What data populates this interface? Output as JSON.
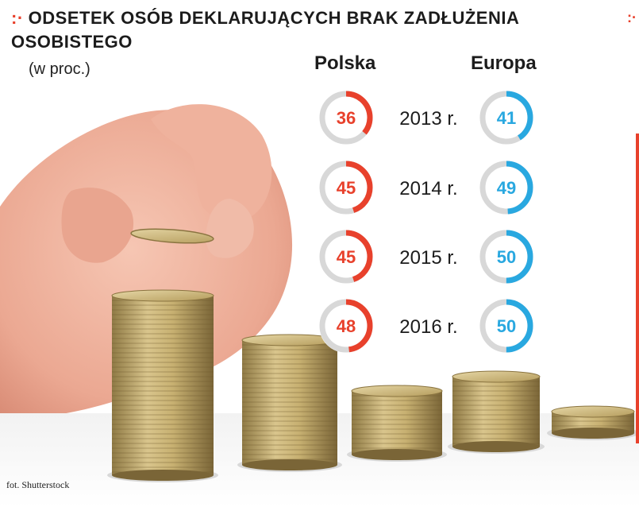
{
  "header": {
    "mark": ":·",
    "title": "ODSETEK OSÓB DEKLARUJĄCYCH BRAK ZADŁUŻENIA OSOBISTEGO",
    "subtitle": "(w proc.)",
    "right_mark": ":·"
  },
  "credit": "fot. Shutterstock",
  "colors": {
    "polska": "#e8412c",
    "europa": "#29a8e0",
    "track": "#d8d8d8",
    "title_mark": "#e8412c"
  },
  "chart_data": {
    "type": "pie",
    "variant": "donut-gauges",
    "categories": [
      "2013 r.",
      "2014 r.",
      "2015 r.",
      "2016 r."
    ],
    "series": [
      {
        "name": "Polska",
        "values": [
          36,
          45,
          45,
          48
        ],
        "color": "#e8412c"
      },
      {
        "name": "Europa",
        "values": [
          41,
          49,
          50,
          50
        ],
        "color": "#29a8e0"
      }
    ],
    "max": 100,
    "title": "ODSETEK OSÓB DEKLARUJĄCYCH BRAK ZADŁUŻENIA OSOBISTEGO",
    "subtitle": "(w proc.)"
  }
}
